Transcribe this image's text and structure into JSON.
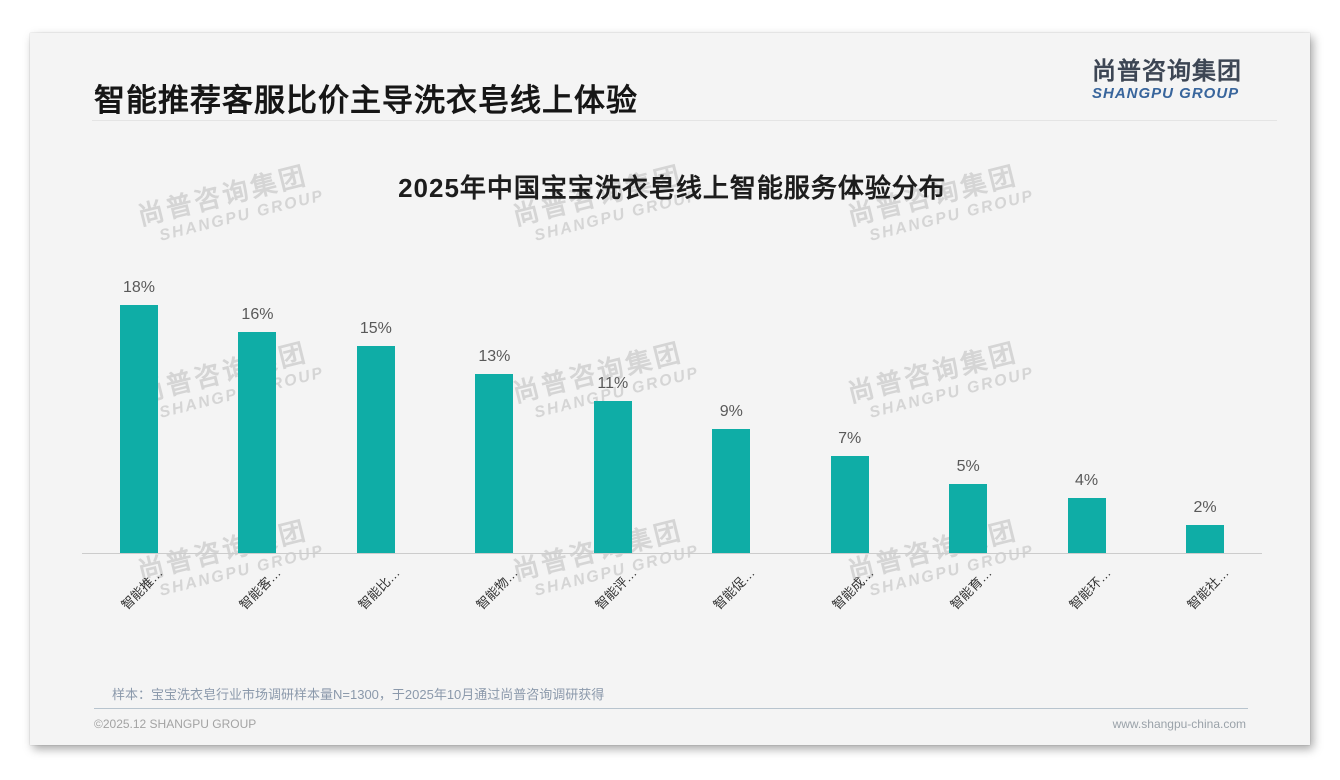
{
  "page": {
    "title": "智能推荐客服比价主导洗衣皂线上体验",
    "logo": {
      "cn": "尚普咨询集团",
      "en": "SHANGPU GROUP"
    },
    "watermark": {
      "cn": "尚普咨询集团",
      "en": "SHANGPU GROUP"
    },
    "footnote": "样本：宝宝洗衣皂行业市场调研样本量N=1300，于2025年10月通过尚普咨询调研获得",
    "footer": {
      "copyright": "©2025.12 SHANGPU GROUP",
      "website": "www.shangpu-china.com"
    },
    "colors": {
      "logo_cn": "#3d4654",
      "logo_en": "#38659c",
      "card_background": "#f4f4f4"
    }
  },
  "chart_data": {
    "type": "bar",
    "title": "2025年中国宝宝洗衣皂线上智能服务体验分布",
    "categories": [
      "智能推…",
      "智能客…",
      "智能比…",
      "智能物…",
      "智能评…",
      "智能促…",
      "智能成…",
      "智能育…",
      "智能环…",
      "智能社…"
    ],
    "values": [
      18,
      16,
      15,
      13,
      11,
      9,
      7,
      5,
      4,
      2
    ],
    "unit": "%",
    "xlabel": "",
    "ylabel": "",
    "ylim": [
      0,
      20
    ],
    "grid": false,
    "legend": false,
    "y_axis_visible": false,
    "value_labels_above_bars": true,
    "x_label_rotation_deg": 45,
    "colors": {
      "bar": "#0fada6",
      "value_label": "#595959",
      "axis_line": "#cccccc",
      "x_label": "#333333"
    }
  }
}
